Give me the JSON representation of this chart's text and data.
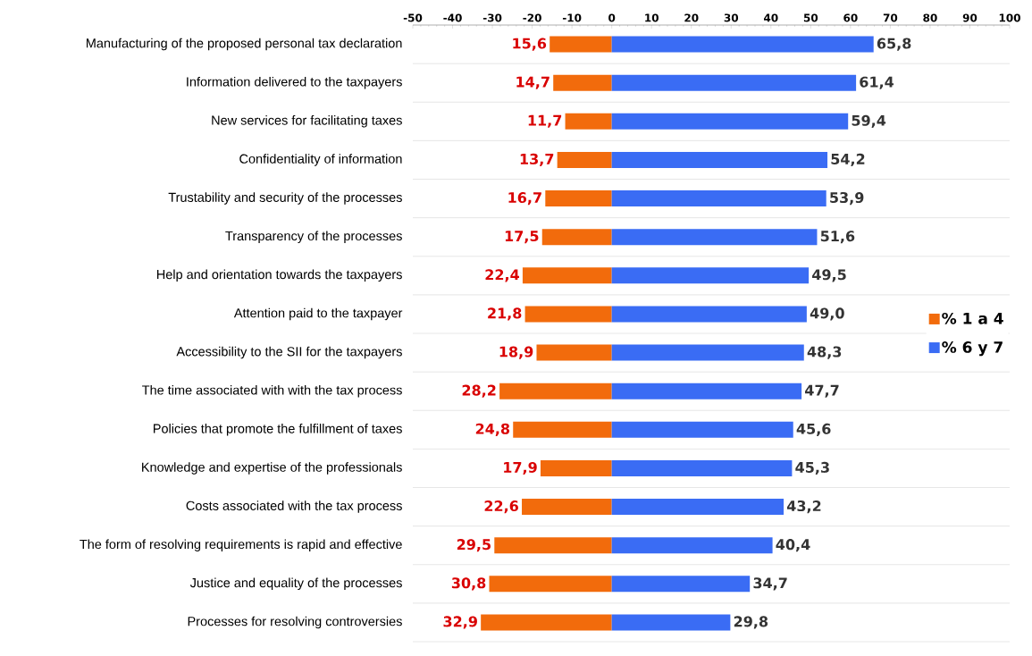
{
  "chart_data": {
    "type": "bar",
    "orientation": "horizontal",
    "categories": [
      "Manufacturing of the proposed personal tax declaration",
      "Information delivered to the taxpayers",
      "New services for facilitating taxes",
      "Confidentiality of information",
      "Trustability and security of the processes",
      "Transparency of the processes",
      "Help and orientation towards the taxpayers",
      "Attention paid to the taxpayer",
      "Accessibility to the SII for the taxpayers",
      "The time associated with with the tax process",
      "Policies that promote the fulfillment of taxes",
      "Knowledge and expertise of the professionals",
      "Costs associated with the tax process",
      "The form of resolving requirements is rapid and effective",
      "Justice and equality of the processes",
      "Processes for resolving controversies"
    ],
    "series": [
      {
        "name": "% 1 a 4",
        "color": "#f26b0c",
        "values": [
          15.6,
          14.7,
          11.7,
          13.7,
          16.7,
          17.5,
          22.4,
          21.8,
          18.9,
          28.2,
          24.8,
          17.9,
          22.6,
          29.5,
          30.8,
          32.9
        ],
        "base": [
          -15.6,
          -14.7,
          -11.7,
          -13.7,
          -16.7,
          -17.5,
          -22.4,
          -21.8,
          -18.9,
          -28.2,
          -24.8,
          -17.9,
          -22.6,
          -29.5,
          -30.8,
          -32.9
        ],
        "value_labels": [
          "15,6",
          "14,7",
          "11,7",
          "13,7",
          "16,7",
          "17,5",
          "22,4",
          "21,8",
          "18,9",
          "28,2",
          "24,8",
          "17,9",
          "22,6",
          "29,5",
          "30,8",
          "32,9"
        ]
      },
      {
        "name": "% 6 y 7",
        "color": "#3a6cf4",
        "values": [
          65.8,
          61.4,
          59.4,
          54.2,
          53.9,
          51.6,
          49.5,
          49.0,
          48.3,
          47.7,
          45.6,
          45.3,
          43.2,
          40.4,
          34.7,
          29.8
        ],
        "value_labels": [
          "65,8",
          "61,4",
          "59,4",
          "54,2",
          "53,9",
          "51,6",
          "49,5",
          "49,0",
          "48,3",
          "47,7",
          "45,6",
          "45,3",
          "43,2",
          "40,4",
          "34,7",
          "29,8"
        ]
      }
    ],
    "xlim": [
      -50,
      100
    ],
    "xticks": [
      -50,
      -40,
      -30,
      -20,
      -10,
      0,
      10,
      20,
      30,
      40,
      50,
      60,
      70,
      80,
      90,
      100
    ],
    "grid": "y",
    "legend": "right"
  }
}
